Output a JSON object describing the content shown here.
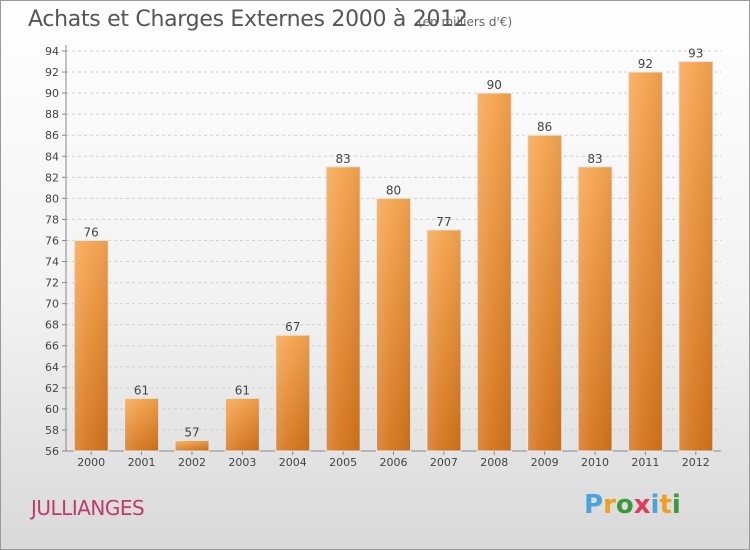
{
  "title": "Achats et Charges Externes 2000 à 2012",
  "subtitle": "(en milliers d'€)",
  "commune": "JULLIANGES",
  "brand": {
    "letters": [
      {
        "ch": "P",
        "color": "#4aa3df"
      },
      {
        "ch": "r",
        "color": "#f0a020"
      },
      {
        "ch": "o",
        "color": "#3a9a3a"
      },
      {
        "ch": "x",
        "color": "#e23a5a"
      },
      {
        "ch": "i",
        "color": "#4aa3df"
      },
      {
        "ch": "t",
        "color": "#f0a020"
      },
      {
        "ch": "i",
        "color": "#3a9a3a"
      }
    ]
  },
  "chart_data": {
    "type": "bar",
    "categories": [
      "2000",
      "2001",
      "2002",
      "2003",
      "2004",
      "2005",
      "2006",
      "2007",
      "2008",
      "2009",
      "2010",
      "2011",
      "2012"
    ],
    "values": [
      76,
      61,
      57,
      61,
      67,
      83,
      80,
      77,
      90,
      86,
      83,
      92,
      93
    ],
    "ylim": [
      56,
      94
    ],
    "yticks": [
      56,
      58,
      60,
      62,
      64,
      66,
      68,
      70,
      72,
      74,
      76,
      78,
      80,
      82,
      84,
      86,
      88,
      90,
      92,
      94
    ],
    "grid": true,
    "bar_color_top": "#f6a54f",
    "bar_color_bottom": "#d4731a"
  }
}
